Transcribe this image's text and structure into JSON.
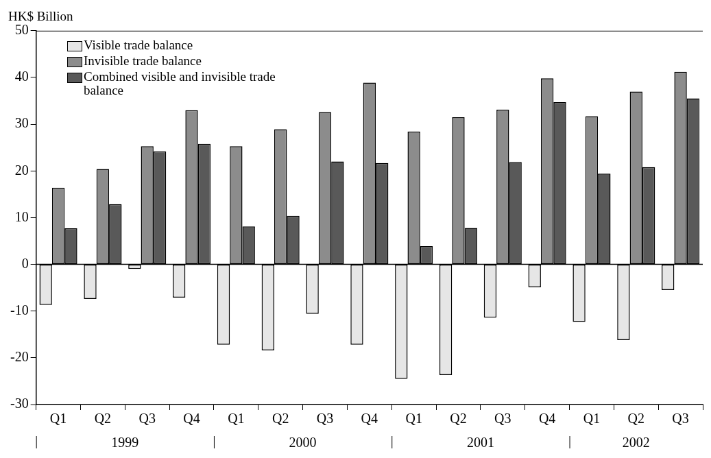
{
  "chart_data": {
    "type": "bar",
    "ylabel": "HK$ Billion",
    "categories": [
      "Q1",
      "Q2",
      "Q3",
      "Q4",
      "Q1",
      "Q2",
      "Q3",
      "Q4",
      "Q1",
      "Q2",
      "Q3",
      "Q4",
      "Q1",
      "Q2",
      "Q3"
    ],
    "series": [
      {
        "name": "Visible trade balance",
        "color": "#e6e6e6",
        "values": [
          -8.7,
          -7.4,
          -1.0,
          -7.1,
          -17.2,
          -18.4,
          -10.6,
          -17.2,
          -24.5,
          -23.7,
          -11.4,
          -4.9,
          -12.3,
          -16.2,
          -5.5
        ]
      },
      {
        "name": "Invisible trade balance",
        "color": "#8c8c8c",
        "values": [
          16.4,
          20.4,
          25.3,
          33.0,
          25.3,
          28.9,
          32.6,
          38.9,
          28.4,
          31.5,
          33.1,
          39.8,
          31.7,
          37.0,
          41.2
        ]
      },
      {
        "name": "Combined visible and invisible trade balance",
        "color": "#595959",
        "values": [
          7.7,
          12.9,
          24.2,
          25.8,
          8.1,
          10.4,
          22.0,
          21.7,
          3.9,
          7.8,
          21.9,
          34.7,
          19.4,
          20.8,
          35.5
        ]
      }
    ],
    "annotations": [
      "1999",
      "2000",
      "2001",
      "2002"
    ],
    "ylim": [
      -30,
      50
    ],
    "yticks": [
      -30,
      -20,
      -10,
      0,
      10,
      20,
      30,
      40,
      50
    ],
    "legend": "top left"
  }
}
